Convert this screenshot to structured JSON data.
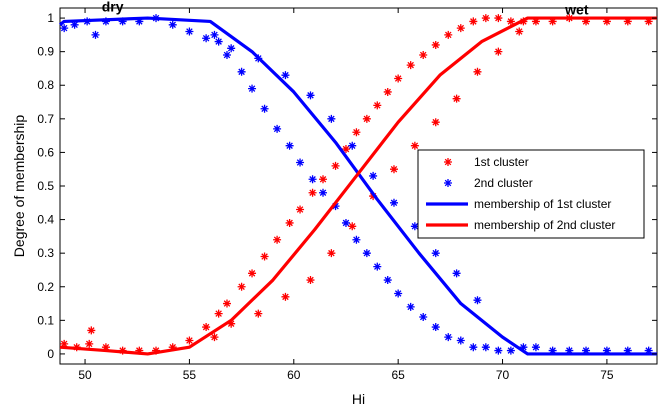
{
  "chart_data": {
    "type": "scatter",
    "title": "",
    "xlabel": "Hi",
    "ylabel": "Degree of membership",
    "xlim": [
      48.8,
      77.4
    ],
    "ylim": [
      -0.03,
      1.03
    ],
    "xticks": [
      50,
      55,
      60,
      65,
      70,
      75
    ],
    "yticks": [
      0,
      0.1,
      0.2,
      0.3,
      0.4,
      0.5,
      0.6,
      0.7,
      0.8,
      0.9,
      1
    ],
    "grid": false,
    "legend_position": "center-right",
    "annotations": [
      {
        "text": "dry",
        "x": 50.8,
        "y": 1.02
      },
      {
        "text": "wet",
        "x": 73.0,
        "y": 1.01
      }
    ],
    "series": [
      {
        "name": "1st cluster",
        "kind": "points",
        "marker": "*",
        "color": "#ff0000",
        "x": [
          49.0,
          49.6,
          50.2,
          50.3,
          51.0,
          51.8,
          52.6,
          53.4,
          54.2,
          55.0,
          55.8,
          56.4,
          56.8,
          57.5,
          58.0,
          58.6,
          59.2,
          59.8,
          60.3,
          60.9,
          61.4,
          62.0,
          62.5,
          63.0,
          63.5,
          64.0,
          64.5,
          65.0,
          65.6,
          66.2,
          66.8,
          67.4,
          68.0,
          68.6,
          69.2,
          69.8,
          70.4,
          71.0,
          71.6,
          72.4,
          73.2,
          74.0,
          75.0,
          76.0,
          77.0,
          56.2,
          57.0,
          58.3,
          59.6,
          60.8,
          61.8,
          62.8,
          63.8,
          64.8,
          65.8,
          66.8,
          67.8,
          68.8,
          69.8,
          70.8
        ],
        "y": [
          0.03,
          0.02,
          0.03,
          0.07,
          0.02,
          0.01,
          0.01,
          0.01,
          0.02,
          0.04,
          0.08,
          0.12,
          0.15,
          0.2,
          0.24,
          0.29,
          0.34,
          0.39,
          0.43,
          0.48,
          0.52,
          0.56,
          0.61,
          0.66,
          0.7,
          0.74,
          0.78,
          0.82,
          0.86,
          0.89,
          0.92,
          0.95,
          0.97,
          0.99,
          1.0,
          1.0,
          0.99,
          0.99,
          0.99,
          0.99,
          1.0,
          0.99,
          0.99,
          0.99,
          0.99,
          0.05,
          0.09,
          0.12,
          0.17,
          0.22,
          0.3,
          0.38,
          0.47,
          0.55,
          0.62,
          0.69,
          0.76,
          0.84,
          0.9,
          0.96
        ]
      },
      {
        "name": "2nd cluster",
        "kind": "points",
        "marker": "*",
        "color": "#0000ff",
        "x": [
          49.0,
          49.5,
          50.1,
          50.5,
          51.0,
          51.8,
          52.6,
          53.4,
          54.2,
          55.0,
          55.8,
          56.4,
          56.8,
          57.5,
          58.0,
          58.6,
          59.2,
          59.8,
          60.3,
          60.9,
          61.4,
          62.0,
          62.5,
          63.0,
          63.5,
          64.0,
          64.5,
          65.0,
          65.6,
          66.2,
          66.8,
          67.4,
          68.0,
          68.6,
          69.2,
          69.8,
          70.4,
          71.0,
          71.6,
          72.4,
          73.2,
          74.0,
          75.0,
          76.0,
          77.0,
          56.2,
          57.0,
          58.3,
          59.6,
          60.8,
          61.8,
          62.8,
          63.8,
          64.8,
          65.8,
          66.8,
          67.8,
          68.8
        ],
        "y": [
          0.97,
          0.98,
          0.99,
          0.95,
          0.99,
          0.99,
          0.99,
          1.0,
          0.98,
          0.96,
          0.94,
          0.93,
          0.89,
          0.84,
          0.79,
          0.73,
          0.67,
          0.62,
          0.57,
          0.52,
          0.48,
          0.44,
          0.39,
          0.34,
          0.3,
          0.26,
          0.22,
          0.18,
          0.14,
          0.11,
          0.08,
          0.05,
          0.04,
          0.02,
          0.02,
          0.01,
          0.01,
          0.02,
          0.02,
          0.01,
          0.01,
          0.01,
          0.01,
          0.01,
          0.01,
          0.95,
          0.91,
          0.88,
          0.83,
          0.77,
          0.7,
          0.62,
          0.53,
          0.45,
          0.38,
          0.3,
          0.24,
          0.16
        ]
      },
      {
        "name": "membership of 1st cluster",
        "kind": "line",
        "color": "#0000ff",
        "x": [
          48.8,
          49.0,
          53.0,
          56.0,
          58.0,
          60.0,
          62.0,
          64.0,
          66.0,
          68.0,
          70.0,
          71.2,
          77.4
        ],
        "y": [
          0.98,
          0.99,
          1.0,
          0.99,
          0.9,
          0.78,
          0.63,
          0.46,
          0.3,
          0.15,
          0.05,
          0.0,
          0.0
        ]
      },
      {
        "name": "membership of 2nd cluster",
        "kind": "line",
        "color": "#ff0000",
        "x": [
          48.8,
          51.0,
          53.0,
          55.0,
          57.0,
          59.0,
          61.0,
          63.0,
          65.0,
          67.0,
          69.0,
          71.2,
          77.4
        ],
        "y": [
          0.02,
          0.01,
          0.0,
          0.02,
          0.1,
          0.22,
          0.37,
          0.53,
          0.69,
          0.83,
          0.93,
          1.0,
          1.0
        ]
      }
    ],
    "legend": [
      {
        "label": "1st cluster",
        "color": "#ff0000",
        "marker": "*"
      },
      {
        "label": "2nd cluster",
        "color": "#0000ff",
        "marker": "*"
      },
      {
        "label": "membership of 1st cluster",
        "color": "#0000ff",
        "line": true
      },
      {
        "label": "membership of 2nd cluster",
        "color": "#ff0000",
        "line": true
      }
    ]
  }
}
